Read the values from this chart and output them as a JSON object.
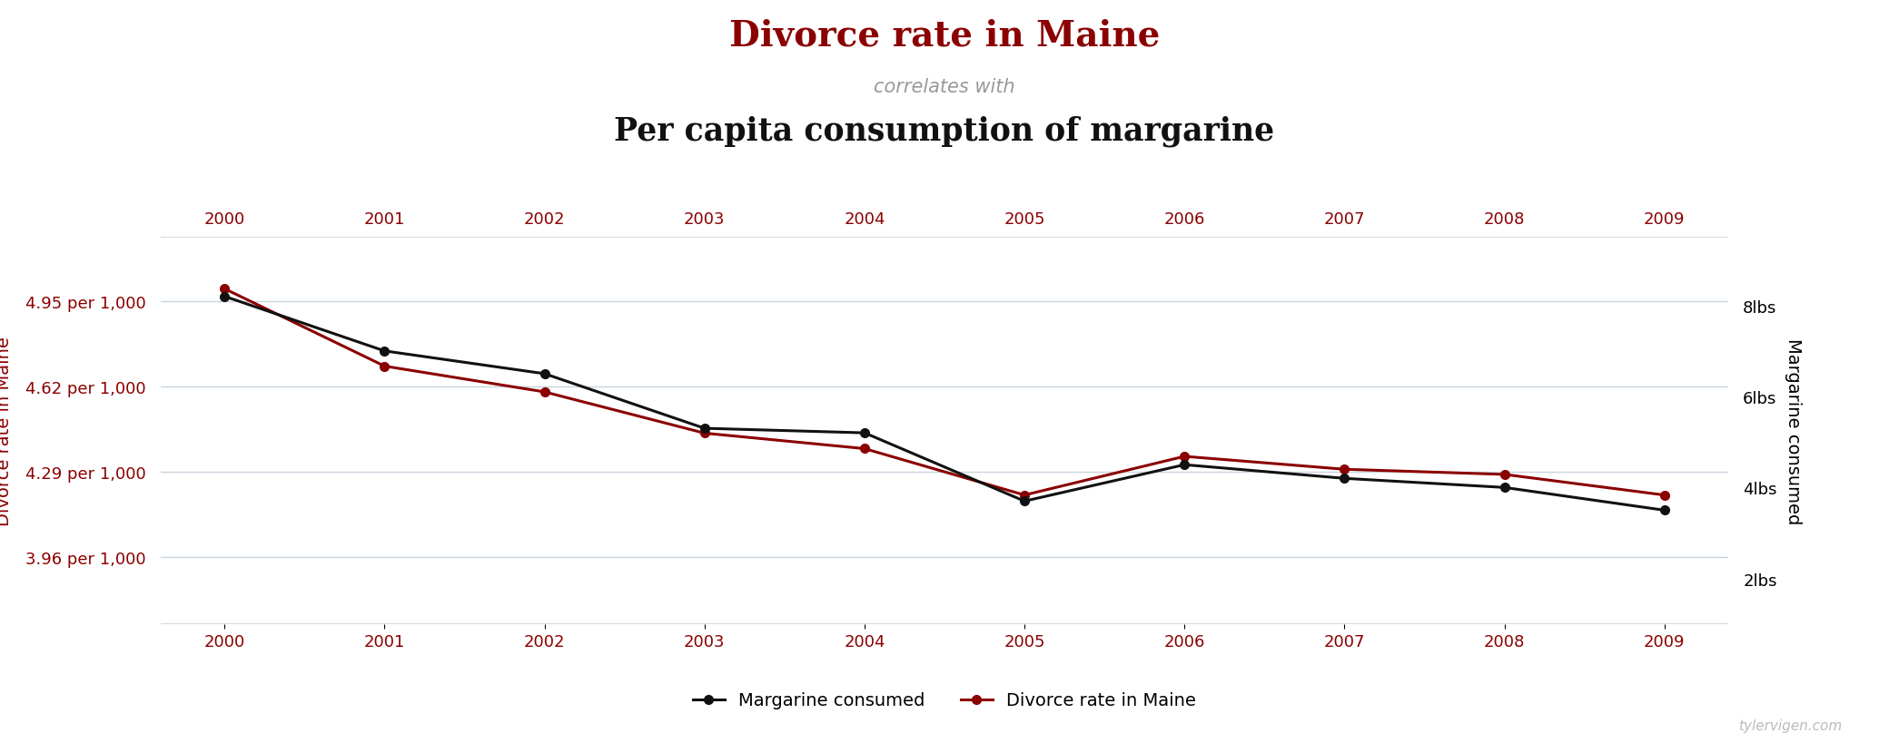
{
  "years": [
    2000,
    2001,
    2002,
    2003,
    2004,
    2005,
    2006,
    2007,
    2008,
    2009
  ],
  "divorce_rate": [
    5.0,
    4.7,
    4.6,
    4.44,
    4.38,
    4.2,
    4.35,
    4.3,
    4.28,
    4.2
  ],
  "margarine_consumed": [
    8.2,
    7.0,
    6.5,
    5.3,
    5.2,
    3.7,
    4.5,
    4.2,
    4.0,
    3.5
  ],
  "title_line1": "Divorce rate in Maine",
  "title_line2": "correlates with",
  "title_line3": "Per capita consumption of margarine",
  "ylabel_left": "Divorce rate in Maine",
  "ylabel_right": "Margarine consumed",
  "left_yticks": [
    3.96,
    4.29,
    4.62,
    4.95
  ],
  "left_ytick_labels": [
    "3.96 per 1,000",
    "4.29 per 1,000",
    "4.62 per 1,000",
    "4.95 per 1,000"
  ],
  "right_yticks": [
    2,
    4,
    6,
    8
  ],
  "right_ytick_labels": [
    "2lbs",
    "4lbs",
    "6lbs",
    "8lbs"
  ],
  "ylim_left": [
    3.7,
    5.2
  ],
  "ylim_right": [
    1.0,
    9.5
  ],
  "color_divorce": "#8B0000",
  "color_margarine": "#111111",
  "color_title1": "#8B0000",
  "color_title3": "#111111",
  "color_subtitle": "#999999",
  "color_xtick": "#8B0000",
  "color_grid": "#c8d4de",
  "watermark": "tylervigen.com",
  "legend_labels": [
    "Margarine consumed",
    "Divorce rate in Maine"
  ]
}
